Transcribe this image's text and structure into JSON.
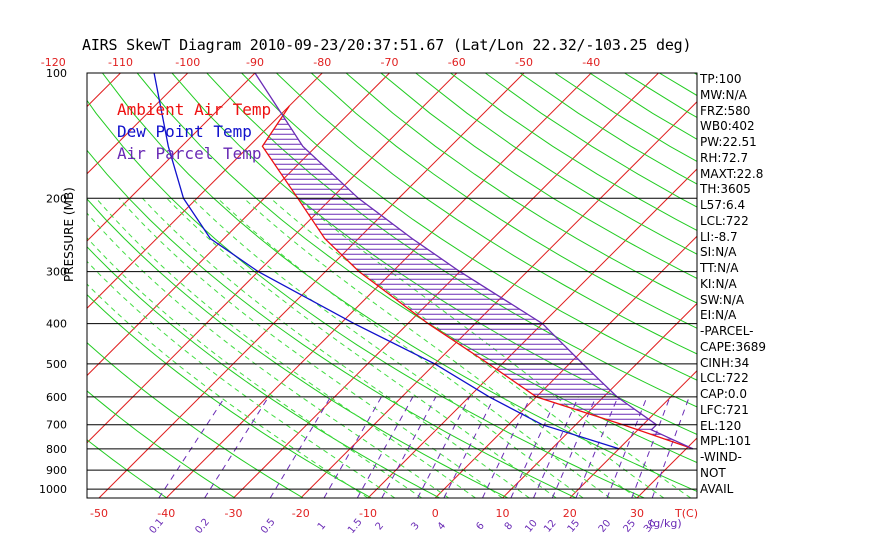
{
  "title": "AIRS SkewT Diagram 2010-09-23/20:37:51.67 (Lat/Lon 22.32/-103.25 deg)",
  "chart_data": {
    "type": "line",
    "ylabel": "PRESSURE (MB)",
    "pressure_levels": [
      100,
      200,
      300,
      400,
      500,
      600,
      700,
      800,
      900,
      1000
    ],
    "bottom_temp_ticks": [
      -50,
      -40,
      -30,
      -20,
      -10,
      0,
      10,
      20,
      30
    ],
    "bottom_temp_unit": "T(C)",
    "top_temp_ticks": [
      -120,
      -110,
      -100,
      -90,
      -80,
      -70,
      -60,
      -50,
      -40
    ],
    "mixing_ratio_ticks": [
      "0.1",
      "0.2",
      "0.5",
      "1",
      "1.5",
      "2",
      "3",
      "4",
      "6",
      "8",
      "10",
      "12",
      "15",
      "20",
      "25",
      "30"
    ],
    "mixing_ratio_unit": "(g/kg)",
    "legend": [
      {
        "name": "Ambient Air Temp",
        "color": "#ee1111"
      },
      {
        "name": "Dew Point Temp",
        "color": "#1111cc"
      },
      {
        "name": "Air Parcel Temp",
        "color": "#6a2bb5"
      }
    ],
    "series": [
      {
        "name": "Ambient Air Temp",
        "p": [
          800,
          770,
          700,
          600,
          500,
          400,
          300,
          250,
          200,
          150,
          120
        ],
        "t": [
          31,
          27,
          17,
          0,
          -12,
          -27,
          -45,
          -55,
          -65,
          -78,
          -80
        ]
      },
      {
        "name": "Dew Point Temp",
        "p": [
          800,
          700,
          600,
          500,
          400,
          300,
          250,
          200,
          150,
          100
        ],
        "t": [
          20,
          5,
          -7,
          -20,
          -38,
          -60,
          -72,
          -82,
          -92,
          -105
        ]
      },
      {
        "name": "Air Parcel Temp",
        "p": [
          800,
          720,
          700,
          600,
          500,
          400,
          300,
          250,
          200,
          150,
          100
        ],
        "t": [
          31,
          22,
          22,
          12,
          2,
          -10,
          -30,
          -42,
          -56,
          -72,
          -90
        ]
      }
    ]
  },
  "stats": [
    "TP:100",
    "MW:N/A",
    "FRZ:580",
    "WB0:402",
    "PW:22.51",
    "RH:72.7",
    "MAXT:22.8",
    "TH:3605",
    "L57:6.4",
    "LCL:722",
    "LI:-8.7",
    "SI:N/A",
    "TT:N/A",
    "KI:N/A",
    "SW:N/A",
    "EI:N/A",
    "-PARCEL-",
    "CAPE:3689",
    "CINH:34",
    "LCL:722",
    "CAP:0.0",
    "LFC:721",
    "EL:120",
    "MPL:101",
    "-WIND-",
    "NOT",
    "AVAIL"
  ]
}
